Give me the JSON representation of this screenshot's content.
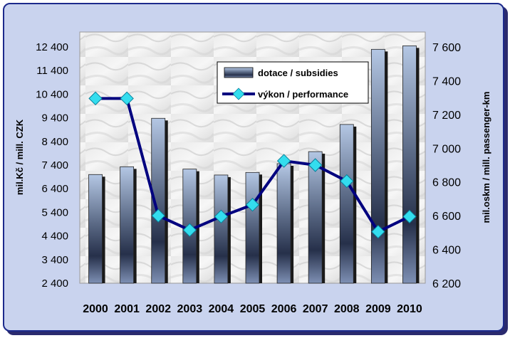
{
  "chart_data": {
    "type": "bar",
    "categories": [
      "2000",
      "2001",
      "2002",
      "2003",
      "2004",
      "2005",
      "2006",
      "2007",
      "2008",
      "2009",
      "2010"
    ],
    "series": [
      {
        "name": "dotace / subsidies",
        "type": "bar",
        "axis": "left",
        "color": "#5a6f9a",
        "values": [
          7000,
          7330,
          9380,
          7230,
          6980,
          7090,
          7460,
          7970,
          9120,
          12300,
          12450
        ]
      },
      {
        "name": "výkon / performance",
        "type": "line",
        "axis": "right",
        "color": "#00007f",
        "marker_color": "#33ddee",
        "values": [
          7295,
          7295,
          6600,
          6515,
          6595,
          6665,
          6925,
          6900,
          6805,
          6505,
          6595
        ]
      }
    ],
    "ylabel": "mil.Kč / mill. CZK",
    "y2label": "mil.oskm / mill. passenger-km",
    "ylim": [
      2400,
      12400
    ],
    "y2lim": [
      6200,
      7600
    ],
    "yticks": [
      "2 400",
      "3 400",
      "4 400",
      "5 400",
      "6 400",
      "7 400",
      "8 400",
      "9 400",
      "10 400",
      "11 400",
      "12 400"
    ],
    "y2ticks": [
      "6 200",
      "6 400",
      "6 600",
      "6 800",
      "7 000",
      "7 200",
      "7 400",
      "7 600"
    ],
    "legend_placement": "top-right",
    "grid": false
  }
}
